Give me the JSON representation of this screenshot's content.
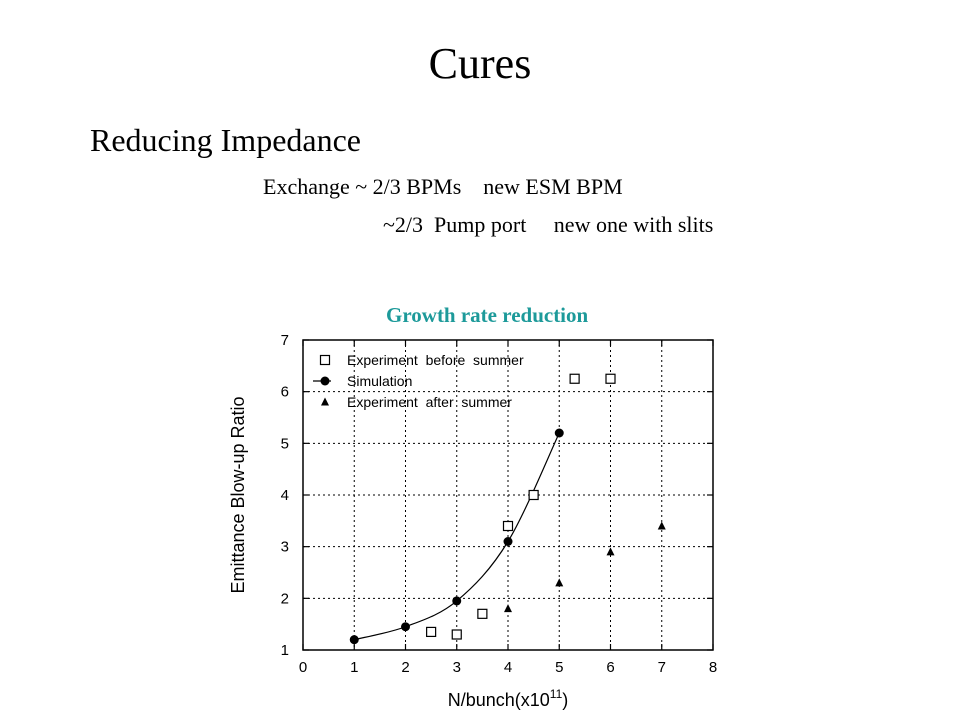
{
  "slide": {
    "title": "Cures",
    "subtitle": "Reducing Impedance",
    "lines": [
      "Exchange ~ 2/3 BPMs    new ESM BPM",
      "~2/3  Pump port     new one with slits"
    ],
    "chart_caption": "Growth rate reduction"
  },
  "colors": {
    "caption": "#1d9a9a",
    "plot": "#000000"
  },
  "chart_data": {
    "type": "scatter",
    "title": "",
    "xlabel": "N/bunch(x10",
    "xlabel_exponent": "11",
    "xlabel_suffix": ")",
    "ylabel": "Emittance Blow-up Ratio",
    "xlim": [
      0,
      8
    ],
    "ylim": [
      1,
      7
    ],
    "xticks": [
      "0",
      "1",
      "2",
      "3",
      "4",
      "5",
      "6",
      "7",
      "8"
    ],
    "yticks": [
      "1",
      "2",
      "3",
      "4",
      "5",
      "6",
      "7"
    ],
    "grid": true,
    "legend_position": "top-left",
    "series": [
      {
        "name": "Experiment  before  summer",
        "marker": "square-open",
        "points": [
          [
            2.5,
            1.35
          ],
          [
            3.0,
            1.3
          ],
          [
            3.5,
            1.7
          ],
          [
            4.0,
            3.4
          ],
          [
            4.5,
            4.0
          ],
          [
            5.3,
            6.25
          ],
          [
            6.0,
            6.25
          ]
        ]
      },
      {
        "name": "Simulation",
        "marker": "circle-filled",
        "line": true,
        "points": [
          [
            1.0,
            1.2
          ],
          [
            2.0,
            1.45
          ],
          [
            3.0,
            1.95
          ],
          [
            4.0,
            3.1
          ],
          [
            5.0,
            5.2
          ]
        ]
      },
      {
        "name": "Experiment  after  summer",
        "marker": "triangle-filled",
        "points": [
          [
            4.0,
            1.8
          ],
          [
            5.0,
            2.3
          ],
          [
            6.0,
            2.9
          ],
          [
            7.0,
            3.4
          ]
        ]
      }
    ]
  }
}
